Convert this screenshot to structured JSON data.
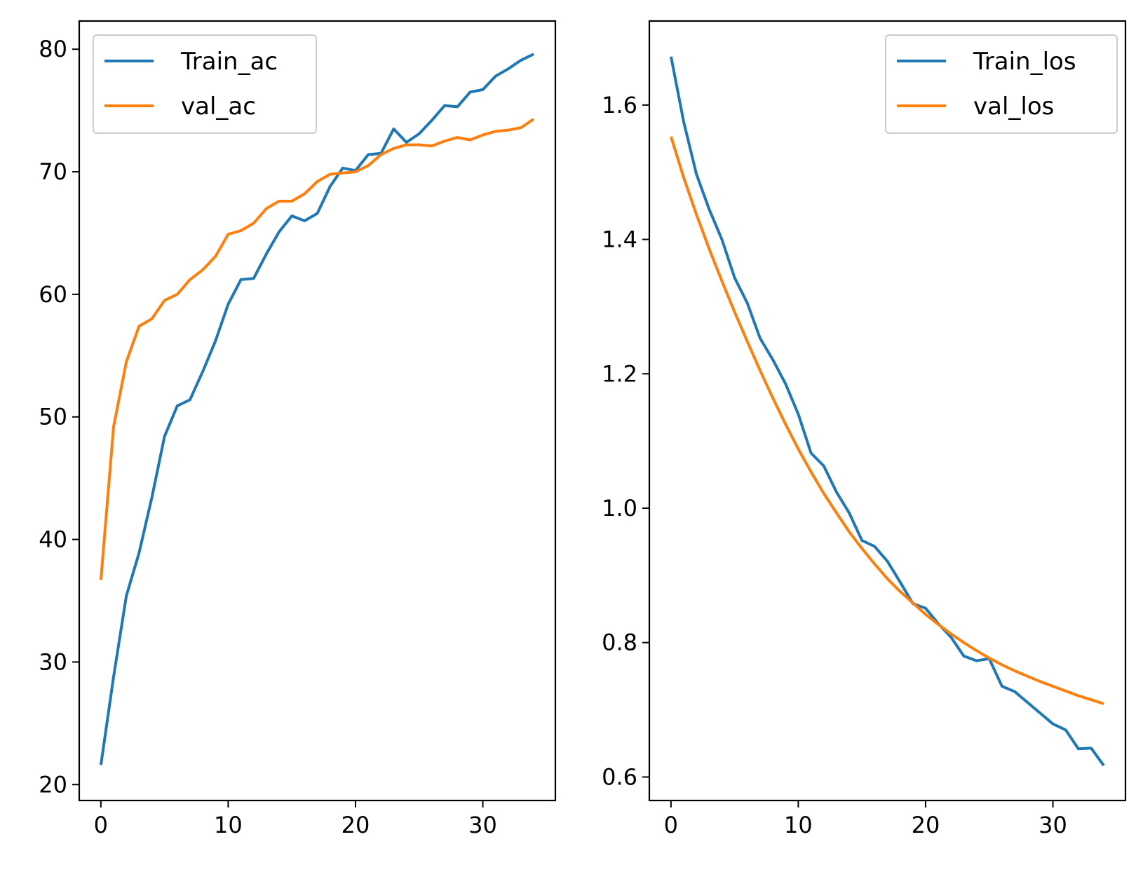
{
  "colors": {
    "series_1": "#1f77b4",
    "series_2": "#ff7f0e",
    "axes": "#000000",
    "background": "#ffffff"
  },
  "chart_data": [
    {
      "type": "line",
      "title": "",
      "xlabel": "",
      "ylabel": "",
      "xlim": [
        -1.7,
        35.7
      ],
      "ylim": [
        18.7,
        82.3
      ],
      "xticks": [
        0,
        10,
        20,
        30
      ],
      "yticks": [
        20,
        30,
        40,
        50,
        60,
        70,
        80
      ],
      "xtick_labels": [
        "0",
        "10",
        "20",
        "30"
      ],
      "ytick_labels": [
        "20",
        "30",
        "40",
        "50",
        "60",
        "70",
        "80"
      ],
      "grid": false,
      "legend_position": "top-left",
      "x": [
        0,
        1,
        2,
        3,
        4,
        5,
        6,
        7,
        8,
        9,
        10,
        11,
        12,
        13,
        14,
        15,
        16,
        17,
        18,
        19,
        20,
        21,
        22,
        23,
        24,
        25,
        26,
        27,
        28,
        29,
        30,
        31,
        32,
        33,
        34
      ],
      "series": [
        {
          "name": "Train_ac",
          "color": "#1f77b4",
          "values": [
            21.6,
            28.8,
            35.4,
            38.9,
            43.4,
            48.4,
            50.9,
            51.4,
            53.7,
            56.2,
            59.2,
            61.2,
            61.3,
            63.3,
            65.1,
            66.4,
            66.0,
            66.6,
            68.8,
            70.3,
            70.1,
            71.4,
            71.5,
            73.5,
            72.4,
            73.1,
            74.2,
            75.4,
            75.3,
            76.5,
            76.7,
            77.8,
            78.4,
            79.1,
            79.6
          ]
        },
        {
          "name": "val_ac",
          "color": "#ff7f0e",
          "values": [
            36.7,
            49.2,
            54.5,
            57.4,
            58.0,
            59.5,
            60.0,
            61.2,
            62.0,
            63.1,
            64.9,
            65.2,
            65.8,
            67.0,
            67.6,
            67.6,
            68.2,
            69.2,
            69.8,
            69.9,
            70.0,
            70.5,
            71.4,
            71.9,
            72.2,
            72.2,
            72.1,
            72.5,
            72.8,
            72.6,
            73.0,
            73.3,
            73.4,
            73.6,
            74.3
          ]
        }
      ]
    },
    {
      "type": "line",
      "title": "",
      "xlabel": "",
      "ylabel": "",
      "xlim": [
        -1.7,
        35.7
      ],
      "ylim": [
        0.565,
        1.725
      ],
      "xticks": [
        0,
        10,
        20,
        30
      ],
      "yticks": [
        0.6,
        0.8,
        1.0,
        1.2,
        1.4,
        1.6
      ],
      "xtick_labels": [
        "0",
        "10",
        "20",
        "30"
      ],
      "ytick_labels": [
        "0.6",
        "0.8",
        "1.0",
        "1.2",
        "1.4",
        "1.6"
      ],
      "grid": false,
      "legend_position": "top-right",
      "x": [
        0,
        1,
        2,
        3,
        4,
        5,
        6,
        7,
        8,
        9,
        10,
        11,
        12,
        13,
        14,
        15,
        16,
        17,
        18,
        19,
        20,
        21,
        22,
        23,
        24,
        25,
        26,
        27,
        28,
        29,
        30,
        31,
        32,
        33,
        34
      ],
      "series": [
        {
          "name": "Train_los",
          "color": "#1f77b4",
          "values": [
            1.672,
            1.575,
            1.497,
            1.445,
            1.4,
            1.343,
            1.305,
            1.253,
            1.221,
            1.185,
            1.14,
            1.082,
            1.063,
            1.024,
            0.993,
            0.952,
            0.943,
            0.921,
            0.89,
            0.858,
            0.851,
            0.828,
            0.808,
            0.78,
            0.773,
            0.776,
            0.735,
            0.727,
            0.711,
            0.695,
            0.679,
            0.67,
            0.642,
            0.643,
            0.617
          ]
        },
        {
          "name": "val_los",
          "color": "#ff7f0e",
          "values": [
            1.553,
            1.492,
            1.437,
            1.386,
            1.338,
            1.292,
            1.248,
            1.205,
            1.164,
            1.125,
            1.088,
            1.054,
            1.022,
            0.993,
            0.965,
            0.94,
            0.917,
            0.895,
            0.876,
            0.859,
            0.842,
            0.827,
            0.813,
            0.8,
            0.788,
            0.777,
            0.767,
            0.758,
            0.75,
            0.742,
            0.735,
            0.728,
            0.721,
            0.715,
            0.709
          ]
        }
      ]
    }
  ]
}
